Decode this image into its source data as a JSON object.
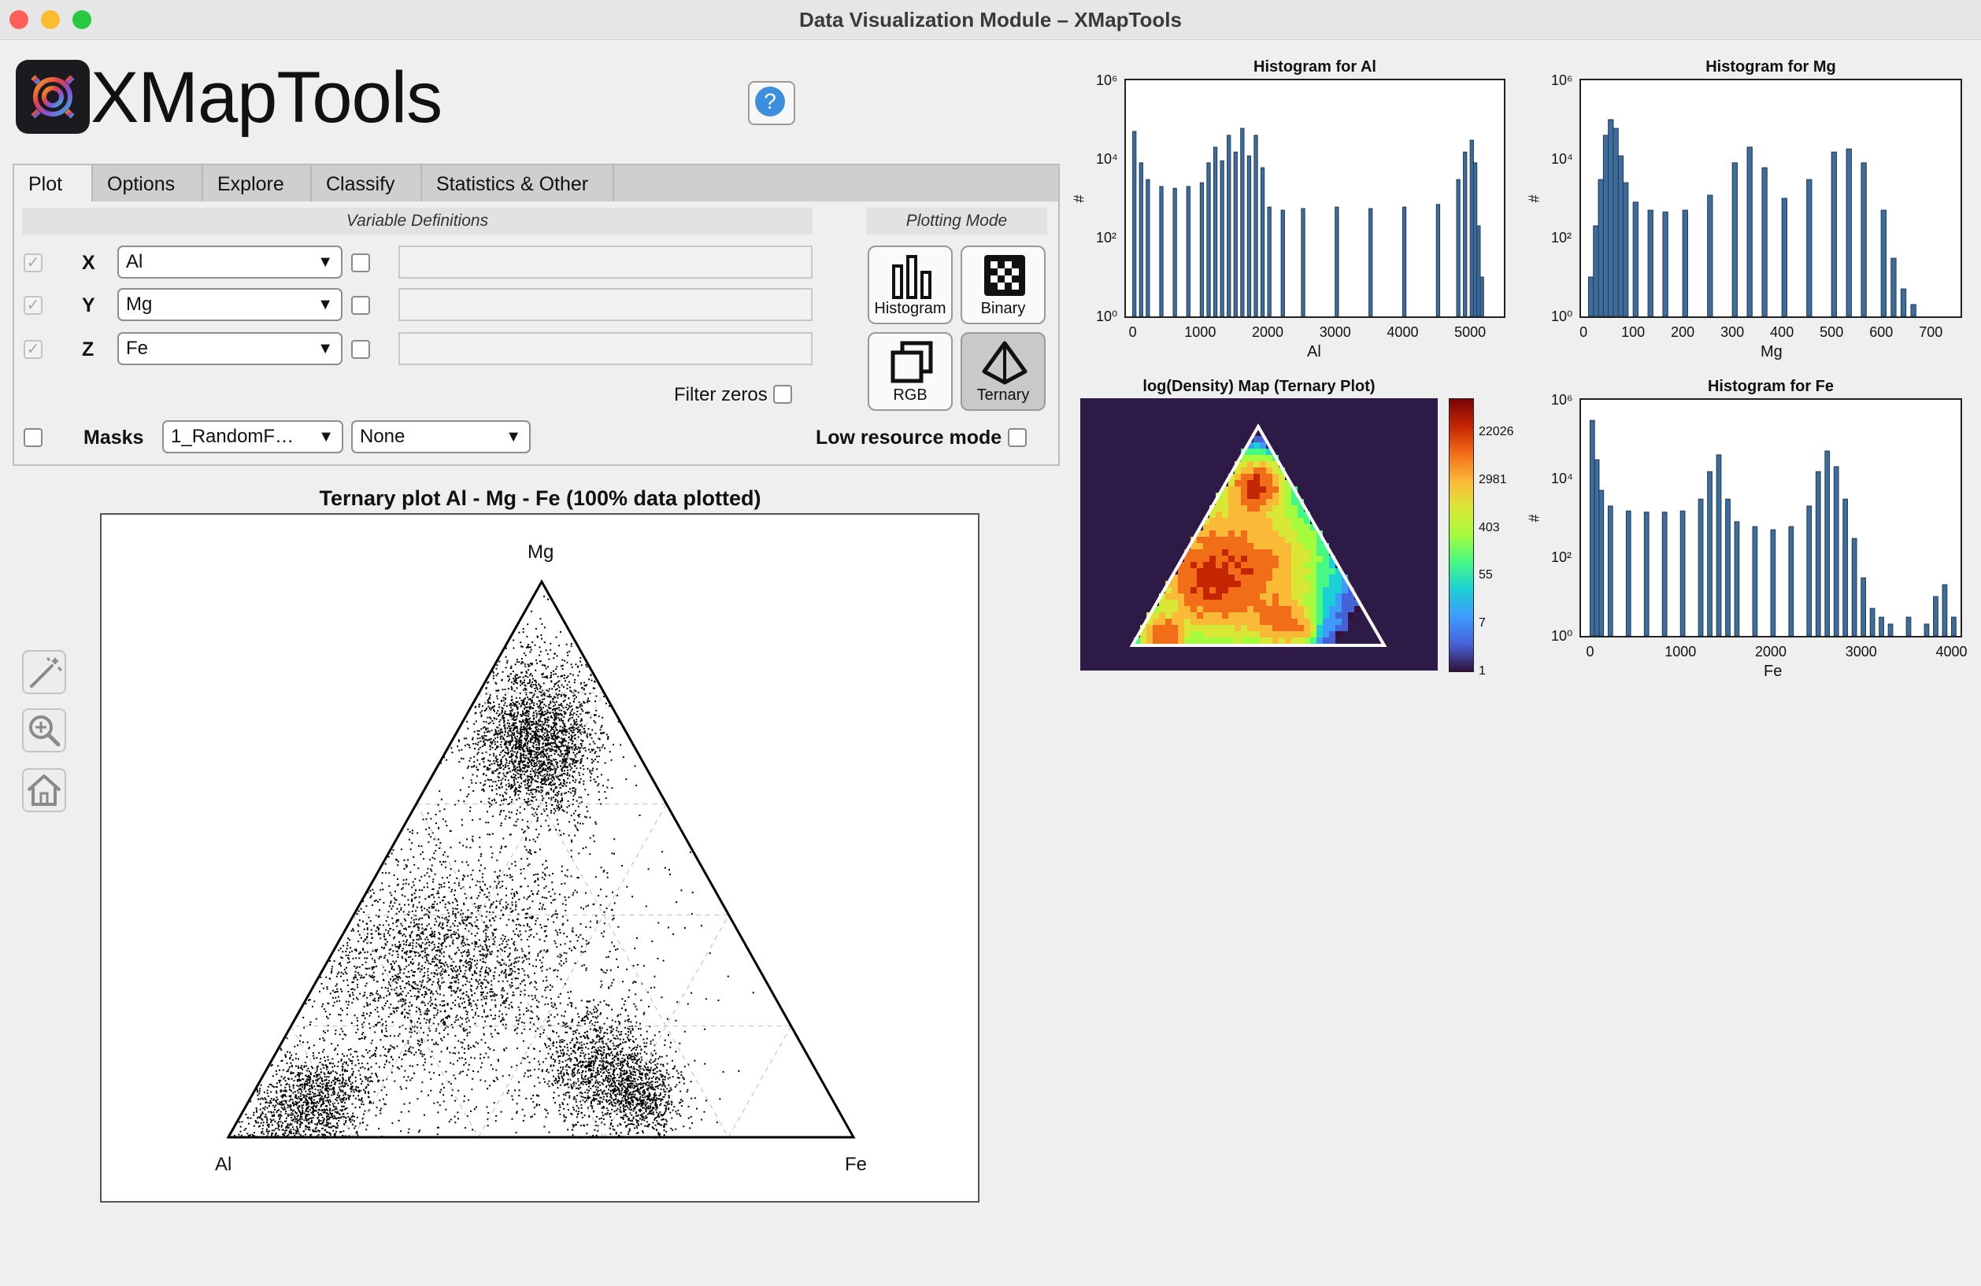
{
  "window": {
    "title": "Data Visualization Module – XMapTools",
    "traffic_lights": {
      "close": "#ff5f57",
      "minimize": "#febc2e",
      "zoom": "#28c840"
    }
  },
  "app": {
    "logo_text": "XMapTools",
    "help_label": "?"
  },
  "tabs": [
    "Plot",
    "Options",
    "Explore",
    "Classify",
    "Statistics & Other"
  ],
  "active_tab": "Plot",
  "variables": {
    "header": "Variable Definitions",
    "rows": [
      {
        "axis": "X",
        "value": "Al"
      },
      {
        "axis": "Y",
        "value": "Mg"
      },
      {
        "axis": "Z",
        "value": "Fe"
      }
    ],
    "filter_zeros_label": "Filter zeros"
  },
  "masks": {
    "label": "Masks",
    "mask_file": "1_RandomF…",
    "mask_choice": "None"
  },
  "low_resource_label": "Low resource mode",
  "plotting_mode": {
    "header": "Plotting Mode",
    "buttons": [
      "Histogram",
      "Binary",
      "RGB",
      "Ternary"
    ],
    "active": "Ternary"
  },
  "tools": [
    "magic-wand-icon",
    "zoom-in-icon",
    "home-icon"
  ],
  "chart_data": [
    {
      "type": "scatter",
      "title": "Ternary plot Al - Mg - Fe (100% data plotted)",
      "vertex_labels": {
        "top": "Mg",
        "left": "Al",
        "right": "Fe"
      },
      "grid": true
    },
    {
      "type": "bar",
      "title": "Histogram for Al",
      "xlabel": "Al",
      "ylabel": "#",
      "yscale": "log",
      "xlim": [
        -100,
        5500
      ],
      "xticks": [
        "0",
        "1000",
        "2000",
        "3000",
        "4000",
        "5000"
      ],
      "yticks": [
        "10⁰",
        "10²",
        "10⁴",
        "10⁶"
      ],
      "x": [
        0,
        100,
        200,
        400,
        600,
        800,
        1000,
        1100,
        1200,
        1300,
        1400,
        1500,
        1600,
        1700,
        1800,
        1900,
        2000,
        2200,
        2500,
        3000,
        3500,
        4000,
        4500,
        4800,
        4900,
        5000,
        5050,
        5100,
        5150
      ],
      "values": [
        50000,
        8000,
        3000,
        2000,
        1800,
        2000,
        2500,
        8000,
        20000,
        9000,
        40000,
        15000,
        60000,
        12000,
        40000,
        6000,
        600,
        500,
        550,
        600,
        550,
        600,
        700,
        3000,
        15000,
        30000,
        8000,
        200,
        10
      ],
      "color": "#3f6d9b"
    },
    {
      "type": "bar",
      "title": "Histogram for Mg",
      "xlabel": "Mg",
      "ylabel": "#",
      "yscale": "log",
      "xlim": [
        -5,
        760
      ],
      "xticks": [
        "0",
        "100",
        "200",
        "300",
        "400",
        "500",
        "600",
        "700"
      ],
      "yticks": [
        "10⁰",
        "10²",
        "10⁴",
        "10⁶"
      ],
      "x": [
        0,
        10,
        20,
        30,
        40,
        50,
        60,
        70,
        80,
        100,
        130,
        160,
        200,
        250,
        300,
        330,
        360,
        400,
        450,
        500,
        530,
        560,
        600,
        620,
        640,
        660,
        680
      ],
      "values": [
        1,
        10,
        200,
        3000,
        40000,
        100000,
        60000,
        12000,
        2500,
        800,
        500,
        450,
        500,
        1200,
        8000,
        20000,
        6000,
        1000,
        3000,
        15000,
        18000,
        8000,
        500,
        30,
        5,
        2,
        1
      ],
      "color": "#3f6d9b"
    },
    {
      "type": "heatmap",
      "title": "log(Density) Map (Ternary Plot)",
      "colorbar_ticks": [
        "22026",
        "2981",
        "403",
        "55",
        "7",
        "1"
      ],
      "colormap": "turbo"
    },
    {
      "type": "bar",
      "title": "Histogram for Fe",
      "xlabel": "Fe",
      "ylabel": "#",
      "yscale": "log",
      "xlim": [
        -100,
        4100
      ],
      "xticks": [
        "0",
        "1000",
        "2000",
        "3000",
        "4000"
      ],
      "yticks": [
        "10⁰",
        "10²",
        "10⁴",
        "10⁶"
      ],
      "x": [
        0,
        50,
        100,
        200,
        400,
        600,
        800,
        1000,
        1200,
        1300,
        1400,
        1500,
        1600,
        1800,
        2000,
        2200,
        2400,
        2500,
        2600,
        2700,
        2800,
        2900,
        3000,
        3100,
        3200,
        3300,
        3500,
        3700,
        3800,
        3900,
        4000
      ],
      "values": [
        300000,
        30000,
        5000,
        2000,
        1500,
        1400,
        1400,
        1500,
        3000,
        15000,
        40000,
        3000,
        800,
        600,
        500,
        600,
        2000,
        15000,
        50000,
        20000,
        3000,
        300,
        30,
        5,
        3,
        2,
        3,
        2,
        10,
        20,
        3
      ],
      "color": "#3f6d9b"
    }
  ]
}
